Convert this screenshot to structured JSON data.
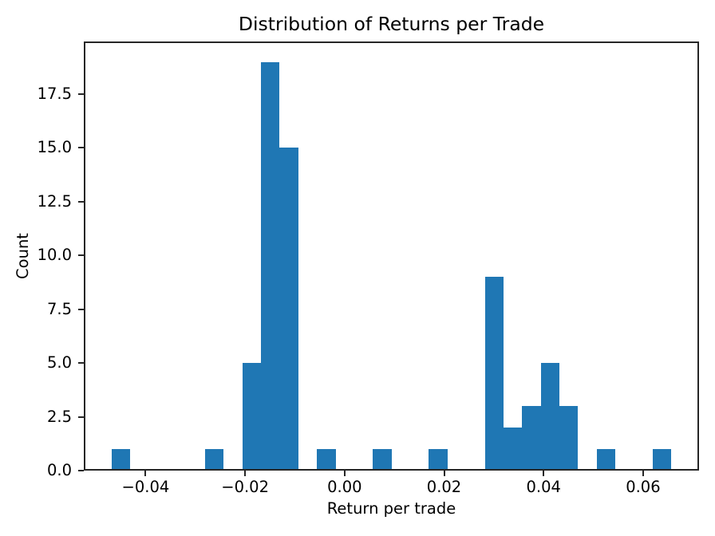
{
  "chart_data": {
    "type": "bar",
    "subtype": "histogram",
    "title": "Distribution of Returns per Trade",
    "xlabel": "Return per trade",
    "ylabel": "Count",
    "bar_color": "#1f77b4",
    "axis_color": "#262626",
    "text_color": "#000000",
    "grid": false,
    "legend": null,
    "xlim": [
      -0.05242,
      0.07124
    ],
    "ylim": [
      0,
      19.95
    ],
    "bins": {
      "start": -0.046795,
      "width": 0.0037485,
      "counts": [
        1,
        0,
        0,
        0,
        0,
        1,
        0,
        5,
        19,
        15,
        0,
        1,
        0,
        0,
        1,
        0,
        0,
        1,
        0,
        0,
        9,
        2,
        3,
        5,
        3,
        0,
        1,
        0,
        0,
        1
      ]
    },
    "x_ticks": [
      {
        "value": -0.04,
        "label": "−0.04"
      },
      {
        "value": -0.02,
        "label": "−0.02"
      },
      {
        "value": 0.0,
        "label": "0.00"
      },
      {
        "value": 0.02,
        "label": "0.02"
      },
      {
        "value": 0.04,
        "label": "0.04"
      },
      {
        "value": 0.06,
        "label": "0.06"
      }
    ],
    "y_ticks": [
      {
        "value": 0.0,
        "label": "0.0"
      },
      {
        "value": 2.5,
        "label": "2.5"
      },
      {
        "value": 5.0,
        "label": "5.0"
      },
      {
        "value": 7.5,
        "label": "7.5"
      },
      {
        "value": 10.0,
        "label": "10.0"
      },
      {
        "value": 12.5,
        "label": "12.5"
      },
      {
        "value": 15.0,
        "label": "15.0"
      },
      {
        "value": 17.5,
        "label": "17.5"
      }
    ]
  }
}
